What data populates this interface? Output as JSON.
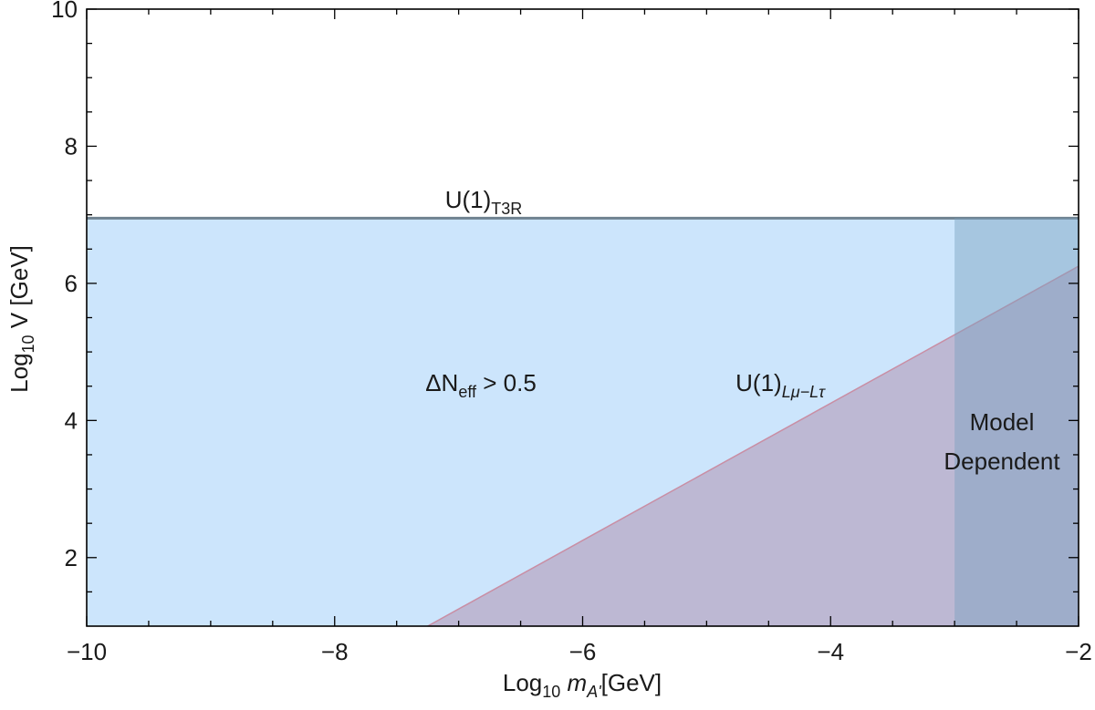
{
  "chart_data": {
    "type": "area",
    "xlabel": {
      "main": "Log",
      "sub": "10",
      "var": " m",
      "var_sub": "A'",
      "rest": "[GeV]"
    },
    "ylabel": {
      "main": "Log",
      "sub": "10",
      "rest": " V [GeV]"
    },
    "xlim": [
      -10,
      -2
    ],
    "ylim": [
      1,
      10
    ],
    "xticks": [
      {
        "value": -10,
        "label": "−10"
      },
      {
        "value": -8,
        "label": "−8"
      },
      {
        "value": -6,
        "label": "−6"
      },
      {
        "value": -4,
        "label": "−4"
      },
      {
        "value": -2,
        "label": "−2"
      }
    ],
    "yticks": [
      2,
      4,
      6,
      8,
      10
    ],
    "xminorticks": [
      -9.5,
      -9,
      -8.5,
      -7.5,
      -7,
      -6.5,
      -5.5,
      -5,
      -4.5,
      -3.5,
      -3,
      -2.5
    ],
    "yminorticks": [
      1.5,
      2.5,
      3,
      3.5,
      4.5,
      5,
      5.5,
      6.5,
      7,
      7.5,
      8.5,
      9,
      9.5
    ],
    "series": [
      {
        "x": [
          -10,
          -2
        ],
        "y": [
          6.95,
          6.95
        ],
        "color": "#cce5fc",
        "edge_color": "#6f8290"
      },
      {
        "x": [
          -7.25,
          -2
        ],
        "y": [
          1,
          6.25
        ],
        "color": "rgba(174,139,170,0.5)",
        "edge_color": "#c98ea4"
      },
      {
        "x": [
          -3,
          -2
        ],
        "y": [
          6.95,
          6.95
        ],
        "color": "rgba(120,160,190,0.45)"
      }
    ],
    "annotations": [
      {
        "main": "U(1)",
        "sub": "T3R"
      },
      {
        "main": "ΔN",
        "sub": "eff",
        "rest": " > 0.5"
      },
      {
        "main": "U(1)",
        "var_sub": "Lμ−Lτ"
      },
      {
        "main": "Model"
      },
      {
        "main": "Dependent"
      }
    ]
  }
}
